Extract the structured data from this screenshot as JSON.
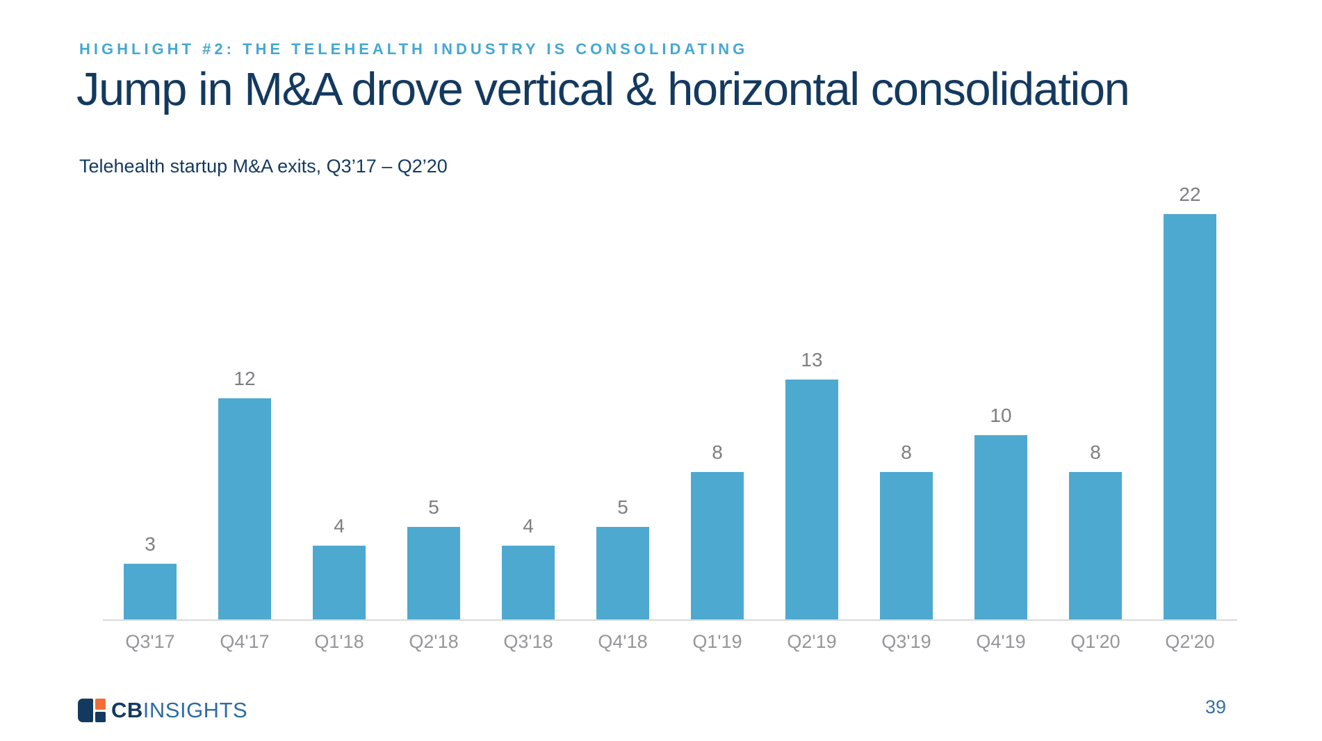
{
  "slide": {
    "eyebrow": "HIGHLIGHT #2: THE TELEHEALTH INDUSTRY IS CONSOLIDATING",
    "title": "Jump in M&A drove vertical & horizontal consolidation",
    "subtitle": "Telehealth startup M&A exits, Q3’17 – Q2’20",
    "page_number": "39"
  },
  "footer": {
    "logo_text_bold": "CB",
    "logo_text_light": "INSIGHTS"
  },
  "chart_data": {
    "type": "bar",
    "categories": [
      "Q3'17",
      "Q4'17",
      "Q1'18",
      "Q2'18",
      "Q3'18",
      "Q4'18",
      "Q1'19",
      "Q2'19",
      "Q3'19",
      "Q4'19",
      "Q1'20",
      "Q2'20"
    ],
    "values": [
      3,
      12,
      4,
      5,
      4,
      5,
      8,
      13,
      8,
      10,
      8,
      22
    ],
    "title": "Telehealth startup M&A exits, Q3'17 – Q2'20",
    "xlabel": "",
    "ylabel": "",
    "ylim": [
      0,
      22
    ],
    "grid": false,
    "legend": false,
    "value_labels_shown": true
  },
  "colors": {
    "accent_blue": "#45a7d2",
    "navy": "#14395f",
    "bar_color": "#4da9cf",
    "value_label": "#7d7e81",
    "axis_label": "#949699",
    "axis_line": "#d9d9d9",
    "orange": "#f26d36",
    "logo_light_blue": "#2e6ca5",
    "page_num_blue": "#3a6fa5"
  }
}
